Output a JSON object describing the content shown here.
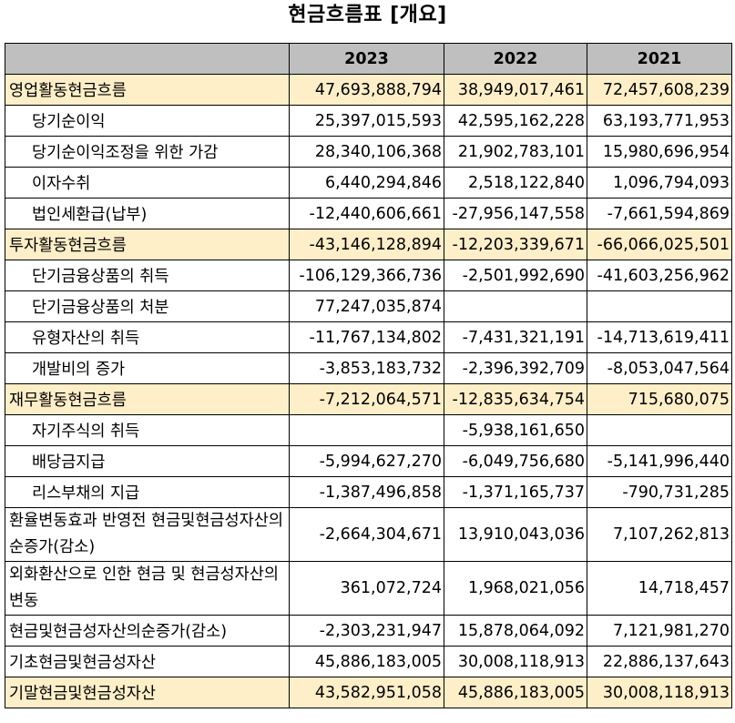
{
  "title": "현금흐름표 [개요]",
  "columns": [
    "",
    "2023",
    "2022",
    "2021"
  ],
  "rows": [
    {
      "label": "영업활동현금흐름",
      "values": [
        "47,693,888,794",
        "38,949,017,461",
        "72,457,608,239"
      ]
    },
    {
      "label": "당기순이익",
      "values": [
        "25,397,015,593",
        "42,595,162,228",
        "63,193,771,953"
      ]
    },
    {
      "label": "당기순이익조정을 위한 가감",
      "values": [
        "28,340,106,368",
        "21,902,783,101",
        "15,980,696,954"
      ]
    },
    {
      "label": "이자수취",
      "values": [
        "6,440,294,846",
        "2,518,122,840",
        "1,096,794,093"
      ]
    },
    {
      "label": "법인세환급(납부)",
      "values": [
        "-12,440,606,661",
        "-27,956,147,558",
        "-7,661,594,869"
      ]
    },
    {
      "label": "투자활동현금흐름",
      "values": [
        "-43,146,128,894",
        "-12,203,339,671",
        "-66,066,025,501"
      ]
    },
    {
      "label": "단기금융상품의 취득",
      "values": [
        "-106,129,366,736",
        "-2,501,992,690",
        "-41,603,256,962"
      ]
    },
    {
      "label": "단기금융상품의 처분",
      "values": [
        "77,247,035,874",
        "",
        ""
      ]
    },
    {
      "label": "유형자산의 취득",
      "values": [
        "-11,767,134,802",
        "-7,431,321,191",
        "-14,713,619,411"
      ]
    },
    {
      "label": "개발비의 증가",
      "values": [
        "-3,853,183,732",
        "-2,396,392,709",
        "-8,053,047,564"
      ]
    },
    {
      "label": "재무활동현금흐름",
      "values": [
        "-7,212,064,571",
        "-12,835,634,754",
        "715,680,075"
      ]
    },
    {
      "label": "자기주식의 취득",
      "values": [
        "",
        "-5,938,161,650",
        ""
      ]
    },
    {
      "label": "배당금지급",
      "values": [
        "-5,994,627,270",
        "-6,049,756,680",
        "-5,141,996,440"
      ]
    },
    {
      "label": "리스부채의 지급",
      "values": [
        "-1,387,496,858",
        "-1,371,165,737",
        "-790,731,285"
      ]
    },
    {
      "label": "환율변동효과 반영전 현금및현금성자산의 순증가(감소)",
      "values": [
        "-2,664,304,671",
        "13,910,043,036",
        "7,107,262,813"
      ]
    },
    {
      "label": "외화환산으로 인한 현금 및 현금성자산의 변동",
      "values": [
        "361,072,724",
        "1,968,021,056",
        "14,718,457"
      ]
    },
    {
      "label": "현금및현금성자산의순증가(감소)",
      "values": [
        "-2,303,231,947",
        "15,878,064,092",
        "7,121,981,270"
      ]
    },
    {
      "label": "기초현금및현금성자산",
      "values": [
        "45,886,183,005",
        "30,008,118,913",
        "22,886,137,643"
      ]
    },
    {
      "label": "기말현금및현금성자산",
      "values": [
        "43,582,951,058",
        "45,886,183,005",
        "30,008,118,913"
      ]
    }
  ],
  "highlight_color": "#ffefc8",
  "header_color": "#bfbfbf"
}
